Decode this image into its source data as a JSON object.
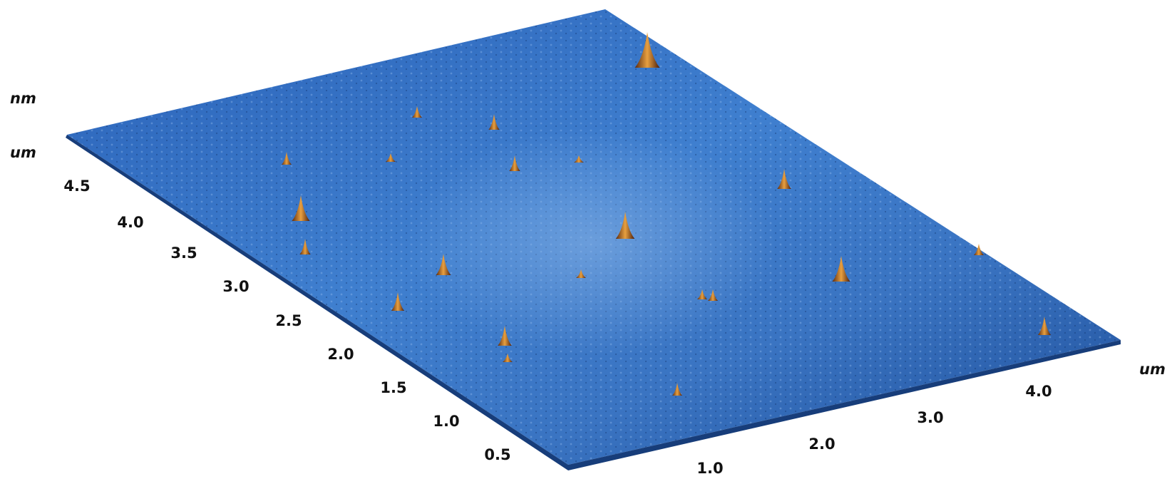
{
  "units": {
    "height": "nm",
    "depth": "um",
    "width": "um"
  },
  "depth_ticks": [
    "4.5",
    "4.0",
    "3.5",
    "3.0",
    "2.5",
    "2.0",
    "1.5",
    "1.0",
    "0.5"
  ],
  "width_ticks": [
    "1.0",
    "2.0",
    "3.0",
    "4.0"
  ]
}
